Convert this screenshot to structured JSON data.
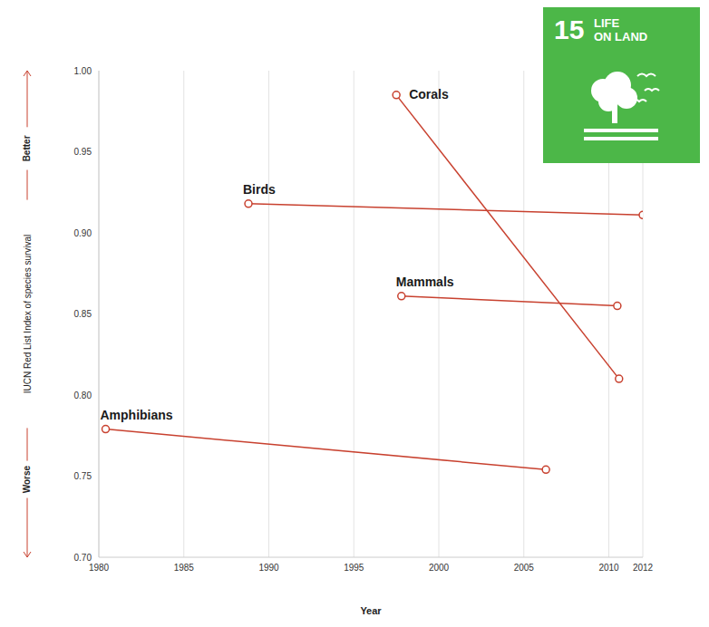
{
  "chart_data": {
    "type": "line",
    "xlabel": "Year",
    "ylabel": "IUCN Red List Index of species survival",
    "y_direction_labels": {
      "top": "Better",
      "bottom": "Worse"
    },
    "xlim": [
      1980,
      2012
    ],
    "xticks": [
      1980,
      1985,
      1990,
      1995,
      2000,
      2005,
      2010,
      2012
    ],
    "ylim": [
      0.7,
      1.0
    ],
    "yticks": [
      {
        "value": 0.7,
        "label": "0.70"
      },
      0.75,
      {
        "value": 0.8,
        "label": "0.80"
      },
      0.85,
      {
        "value": 0.9,
        "label": "0.90"
      },
      0.95,
      {
        "value": 1.0,
        "label": "1.00"
      }
    ],
    "grid": true,
    "marker": "circle",
    "series": [
      {
        "name": "Corals",
        "color": "#c8412f",
        "x": [
          1997.5,
          2010.6
        ],
        "values": [
          0.985,
          0.81
        ]
      },
      {
        "name": "Birds",
        "color": "#c8412f",
        "x": [
          1988.8,
          2012
        ],
        "values": [
          0.918,
          0.911
        ]
      },
      {
        "name": "Mammals",
        "color": "#c8412f",
        "x": [
          1997.8,
          2010.5
        ],
        "values": [
          0.861,
          0.855
        ]
      },
      {
        "name": "Amphibians",
        "color": "#c8412f",
        "x": [
          1980.4,
          2006.3
        ],
        "values": [
          0.779,
          0.754
        ]
      }
    ],
    "badge": {
      "number": "15",
      "lines": [
        "LIFE",
        "ON LAND"
      ]
    }
  }
}
